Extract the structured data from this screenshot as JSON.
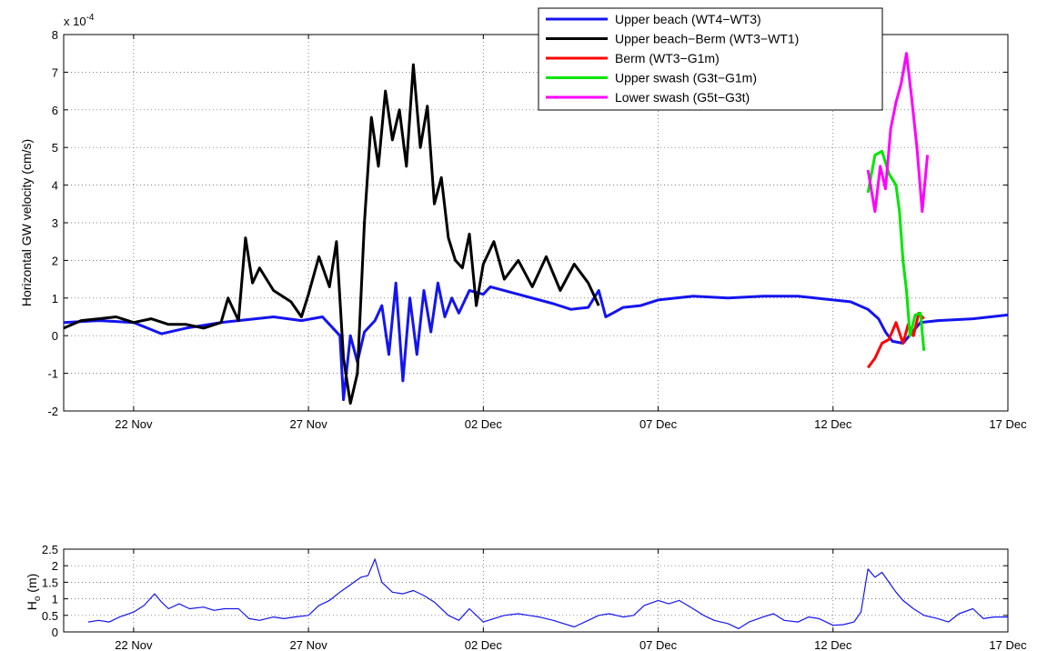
{
  "chart_data": [
    {
      "type": "line",
      "ylabel": "Horizontal GW velocity (cm/s)",
      "y_multiplier_label": "x 10",
      "y_multiplier_exponent": "-4",
      "ylim": [
        -2,
        8
      ],
      "yticks": [
        -2,
        -1,
        0,
        1,
        2,
        3,
        4,
        5,
        6,
        7,
        8
      ],
      "xlim": [
        20.0,
        47.0
      ],
      "x_unit": "day of November (2 Dec = 32)",
      "xticks": [
        22,
        27,
        32,
        37,
        42,
        47
      ],
      "xtick_labels": [
        "22 Nov",
        "27 Nov",
        "02 Dec",
        "07 Dec",
        "12 Dec",
        "17 Dec"
      ],
      "grid": true,
      "legend_position": "top-right",
      "series": [
        {
          "name": "Upper beach (WT4−WT3)",
          "color": "#1414f0",
          "x": [
            20.0,
            21.0,
            22.0,
            22.8,
            23.5,
            24.5,
            25.0,
            26.0,
            26.8,
            27.4,
            27.6,
            27.9,
            28.0,
            28.2,
            28.4,
            28.6,
            28.9,
            29.1,
            29.3,
            29.5,
            29.7,
            29.9,
            30.1,
            30.3,
            30.5,
            30.7,
            30.9,
            31.1,
            31.3,
            31.6,
            32.0,
            32.2,
            33.0,
            34.0,
            34.5,
            35.0,
            35.3,
            35.5,
            35.7,
            36.0,
            36.5,
            37.0,
            38.0,
            39.0,
            40.0,
            41.0,
            42.0,
            42.5,
            43.0,
            43.3,
            43.5,
            43.7,
            44.0,
            44.5,
            45.0,
            46.0,
            47.0
          ],
          "y": [
            0.35,
            0.4,
            0.35,
            0.05,
            0.2,
            0.35,
            0.4,
            0.5,
            0.4,
            0.5,
            0.3,
            0.0,
            -1.7,
            0.0,
            -0.7,
            0.1,
            0.4,
            0.8,
            -0.5,
            1.4,
            -1.2,
            1.0,
            -0.5,
            1.2,
            0.1,
            1.4,
            0.5,
            1.0,
            0.6,
            1.2,
            1.1,
            1.3,
            1.1,
            0.85,
            0.7,
            0.75,
            1.2,
            0.5,
            0.6,
            0.75,
            0.8,
            0.95,
            1.05,
            1.0,
            1.05,
            1.05,
            0.95,
            0.9,
            0.7,
            0.45,
            0.1,
            -0.15,
            -0.2,
            0.35,
            0.4,
            0.45,
            0.55
          ]
        },
        {
          "name": "Upper beach−Berm (WT3−WT1)",
          "color": "#000000",
          "x": [
            20.0,
            20.5,
            21.0,
            21.5,
            22.0,
            22.5,
            23.0,
            23.5,
            24.0,
            24.5,
            24.7,
            25.0,
            25.2,
            25.4,
            25.6,
            26.0,
            26.5,
            26.8,
            27.0,
            27.3,
            27.6,
            27.8,
            28.0,
            28.2,
            28.4,
            28.6,
            28.8,
            29.0,
            29.2,
            29.4,
            29.6,
            29.8,
            30.0,
            30.2,
            30.4,
            30.6,
            30.8,
            31.0,
            31.2,
            31.4,
            31.6,
            31.8,
            32.0,
            32.3,
            32.6,
            33.0,
            33.4,
            33.8,
            34.2,
            34.6,
            35.0,
            35.3
          ],
          "y": [
            0.2,
            0.4,
            0.45,
            0.5,
            0.35,
            0.45,
            0.3,
            0.3,
            0.2,
            0.35,
            1.0,
            0.4,
            2.6,
            1.4,
            1.8,
            1.2,
            0.9,
            0.5,
            1.1,
            2.1,
            1.3,
            2.5,
            -0.6,
            -1.8,
            -1.0,
            3.0,
            5.8,
            4.5,
            6.5,
            5.2,
            6.0,
            4.5,
            7.2,
            5.0,
            6.1,
            3.5,
            4.2,
            2.6,
            2.0,
            1.8,
            2.7,
            0.8,
            1.9,
            2.5,
            1.5,
            2.0,
            1.3,
            2.1,
            1.2,
            1.9,
            1.4,
            0.8
          ]
        },
        {
          "name": "Berm (WT3−G1m)",
          "color": "#ff0000",
          "x": [
            43.0,
            43.2,
            43.4,
            43.6,
            43.8,
            44.0,
            44.15,
            44.3,
            44.45,
            44.6
          ],
          "y": [
            -0.85,
            -0.6,
            -0.2,
            -0.1,
            0.35,
            -0.2,
            0.3,
            0.0,
            0.6,
            0.45
          ]
        },
        {
          "name": "Upper swash (G3t−G1m)",
          "color": "#00e600",
          "x": [
            43.0,
            43.2,
            43.4,
            43.6,
            43.8,
            43.9,
            44.0,
            44.1,
            44.2,
            44.35,
            44.5,
            44.6
          ],
          "y": [
            3.8,
            4.8,
            4.9,
            4.3,
            4.0,
            3.3,
            2.0,
            1.2,
            0.0,
            0.55,
            0.6,
            -0.4
          ]
        },
        {
          "name": "Lower swash (G5t−G3t)",
          "color": "#ff00ff",
          "x": [
            43.0,
            43.2,
            43.35,
            43.5,
            43.65,
            43.8,
            43.95,
            44.1,
            44.25,
            44.4,
            44.55,
            44.7
          ],
          "y": [
            4.4,
            3.3,
            4.5,
            3.9,
            5.5,
            6.2,
            6.7,
            7.5,
            6.3,
            5.0,
            3.3,
            4.8
          ]
        }
      ]
    },
    {
      "type": "line",
      "ylabel_main": "H",
      "ylabel_sub": "o",
      "ylabel_suffix": " (m)",
      "ylim": [
        0,
        2.5
      ],
      "yticks": [
        0,
        0.5,
        1,
        1.5,
        2,
        2.5
      ],
      "xlim": [
        20.0,
        47.0
      ],
      "x_unit": "day of November (2 Dec = 32)",
      "xticks": [
        22,
        27,
        32,
        37,
        42,
        47
      ],
      "xtick_labels": [
        "22 Nov",
        "27 Nov",
        "02 Dec",
        "07 Dec",
        "12 Dec",
        "17 Dec"
      ],
      "grid": true,
      "series": [
        {
          "color": "#1414f0",
          "x": [
            20.7,
            21.0,
            21.3,
            21.6,
            22.0,
            22.3,
            22.6,
            22.8,
            23.0,
            23.3,
            23.6,
            24.0,
            24.3,
            24.6,
            25.0,
            25.3,
            25.6,
            26.0,
            26.3,
            26.6,
            27.0,
            27.3,
            27.6,
            27.9,
            28.1,
            28.3,
            28.5,
            28.7,
            28.9,
            29.1,
            29.4,
            29.7,
            30.0,
            30.3,
            30.6,
            31.0,
            31.3,
            31.6,
            32.0,
            32.3,
            32.6,
            33.0,
            33.3,
            33.6,
            34.0,
            34.3,
            34.6,
            35.0,
            35.3,
            35.6,
            36.0,
            36.3,
            36.6,
            37.0,
            37.3,
            37.6,
            38.0,
            38.3,
            38.6,
            39.0,
            39.3,
            39.6,
            40.0,
            40.3,
            40.6,
            41.0,
            41.3,
            41.6,
            42.0,
            42.3,
            42.6,
            42.8,
            43.0,
            43.2,
            43.4,
            43.6,
            43.8,
            44.0,
            44.3,
            44.6,
            45.0,
            45.3,
            45.6,
            46.0,
            46.3,
            46.6,
            47.0
          ],
          "y": [
            0.3,
            0.35,
            0.3,
            0.45,
            0.6,
            0.8,
            1.15,
            0.9,
            0.7,
            0.85,
            0.7,
            0.75,
            0.65,
            0.7,
            0.7,
            0.4,
            0.35,
            0.45,
            0.4,
            0.45,
            0.5,
            0.8,
            0.95,
            1.2,
            1.35,
            1.5,
            1.65,
            1.7,
            2.2,
            1.5,
            1.2,
            1.15,
            1.25,
            1.1,
            0.9,
            0.5,
            0.35,
            0.7,
            0.3,
            0.4,
            0.5,
            0.55,
            0.5,
            0.45,
            0.35,
            0.25,
            0.15,
            0.35,
            0.5,
            0.55,
            0.45,
            0.5,
            0.8,
            0.95,
            0.85,
            0.95,
            0.7,
            0.5,
            0.35,
            0.25,
            0.1,
            0.3,
            0.45,
            0.55,
            0.35,
            0.3,
            0.45,
            0.4,
            0.2,
            0.22,
            0.3,
            0.6,
            1.9,
            1.65,
            1.8,
            1.5,
            1.2,
            0.95,
            0.7,
            0.5,
            0.4,
            0.3,
            0.55,
            0.7,
            0.4,
            0.45,
            0.45
          ]
        }
      ]
    }
  ]
}
